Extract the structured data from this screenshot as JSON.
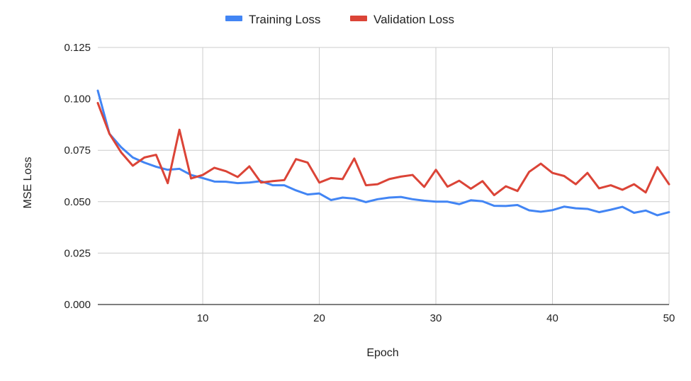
{
  "chart_data": {
    "type": "line",
    "title": "",
    "xlabel": "Epoch",
    "ylabel": "MSE Loss",
    "xlim": [
      1,
      50
    ],
    "ylim": [
      0,
      0.125
    ],
    "grid": true,
    "legend_position": "top-center",
    "x_ticks": [
      10,
      20,
      30,
      40,
      50
    ],
    "x_tick_labels": [
      "10",
      "20",
      "30",
      "40",
      "50"
    ],
    "y_ticks": [
      0,
      0.025,
      0.05,
      0.075,
      0.1,
      0.125
    ],
    "y_tick_labels": [
      "0.000",
      "0.025",
      "0.050",
      "0.075",
      "0.100",
      "0.125"
    ],
    "x": [
      1,
      2,
      3,
      4,
      5,
      6,
      7,
      8,
      9,
      10,
      11,
      12,
      13,
      14,
      15,
      16,
      17,
      18,
      19,
      20,
      21,
      22,
      23,
      24,
      25,
      26,
      27,
      28,
      29,
      30,
      31,
      32,
      33,
      34,
      35,
      36,
      37,
      38,
      39,
      40,
      41,
      42,
      43,
      44,
      45,
      46,
      47,
      48,
      49,
      50
    ],
    "series": [
      {
        "name": "Training Loss",
        "color": "#4285f4",
        "values": [
          0.104,
          0.083,
          0.0765,
          0.0715,
          0.069,
          0.067,
          0.0655,
          0.066,
          0.063,
          0.0615,
          0.0598,
          0.0597,
          0.059,
          0.0593,
          0.06,
          0.058,
          0.058,
          0.0555,
          0.0535,
          0.054,
          0.0508,
          0.052,
          0.0515,
          0.0498,
          0.0512,
          0.052,
          0.0523,
          0.0512,
          0.0505,
          0.05,
          0.05,
          0.0488,
          0.0507,
          0.0502,
          0.048,
          0.0479,
          0.0484,
          0.0458,
          0.0451,
          0.0459,
          0.0476,
          0.0468,
          0.0465,
          0.0449,
          0.0461,
          0.0475,
          0.0446,
          0.0457,
          0.0434,
          0.0449
        ]
      },
      {
        "name": "Validation Loss",
        "color": "#db4437",
        "values": [
          0.098,
          0.083,
          0.074,
          0.0675,
          0.0715,
          0.0728,
          0.059,
          0.085,
          0.0613,
          0.063,
          0.0665,
          0.0648,
          0.062,
          0.0672,
          0.0593,
          0.06,
          0.0605,
          0.0707,
          0.069,
          0.0593,
          0.0615,
          0.061,
          0.071,
          0.058,
          0.0585,
          0.061,
          0.0622,
          0.063,
          0.0572,
          0.0655,
          0.0573,
          0.0602,
          0.0563,
          0.06,
          0.0532,
          0.0575,
          0.0552,
          0.0645,
          0.0685,
          0.064,
          0.0625,
          0.0585,
          0.064,
          0.0565,
          0.058,
          0.0558,
          0.0585,
          0.0545,
          0.0668,
          0.0585
        ]
      }
    ]
  }
}
